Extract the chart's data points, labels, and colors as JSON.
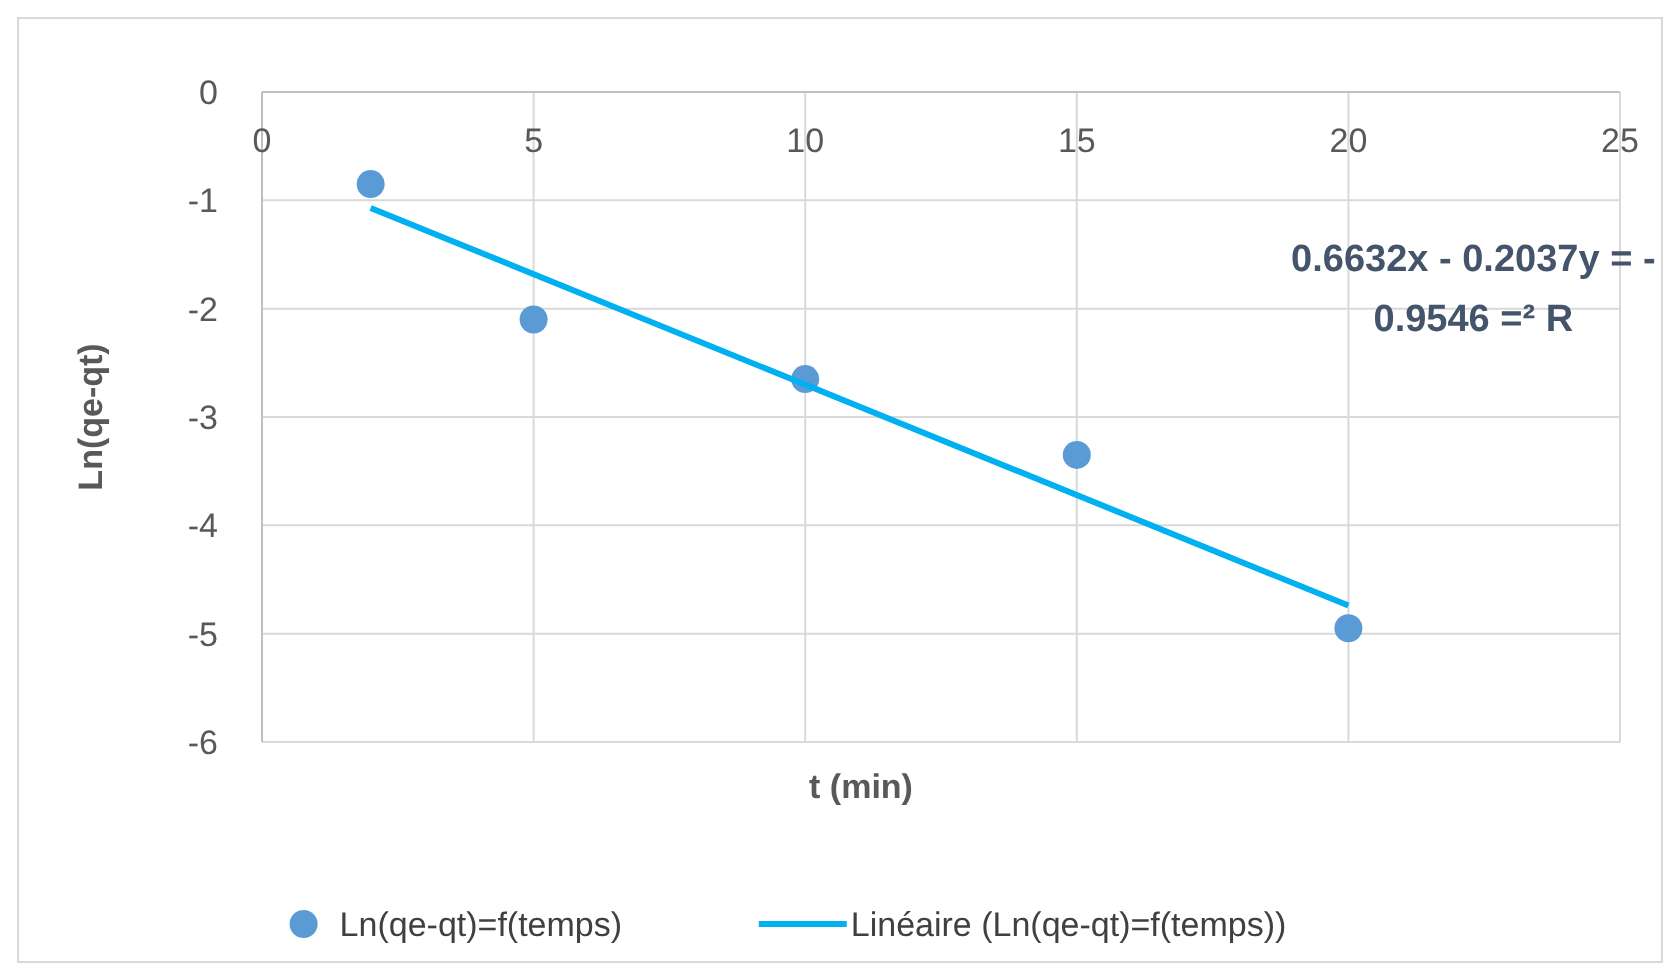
{
  "chart_data": {
    "type": "scatter",
    "xlabel": "t (min)",
    "ylabel": "Ln(qe-qt)",
    "xlim": [
      0,
      25
    ],
    "xticks": [
      0,
      5,
      10,
      15,
      20,
      25
    ],
    "ylim": [
      -6,
      0
    ],
    "yticks": [
      -6,
      -5,
      -4,
      -3,
      -2,
      -1,
      0
    ],
    "grid": true,
    "legend": "bottom",
    "marker": "circle",
    "annotations": [
      "0.6632x - 0.2037y = -",
      "0.9546 =² R"
    ],
    "series": [
      {
        "name": "Ln(qe-qt)=f(temps)",
        "color": "#5b9bd5",
        "x": [
          2,
          5,
          10,
          15,
          20
        ],
        "values": [
          -0.85,
          -2.1,
          -2.65,
          -3.35,
          -4.95
        ]
      },
      {
        "name": "Linéaire (Ln(qe-qt)=f(temps))",
        "type": "line",
        "color": "#00b0f0",
        "line_style": "solid",
        "marker": "none",
        "x": [
          2,
          20
        ],
        "values": [
          -1.07,
          -4.74
        ]
      }
    ]
  }
}
